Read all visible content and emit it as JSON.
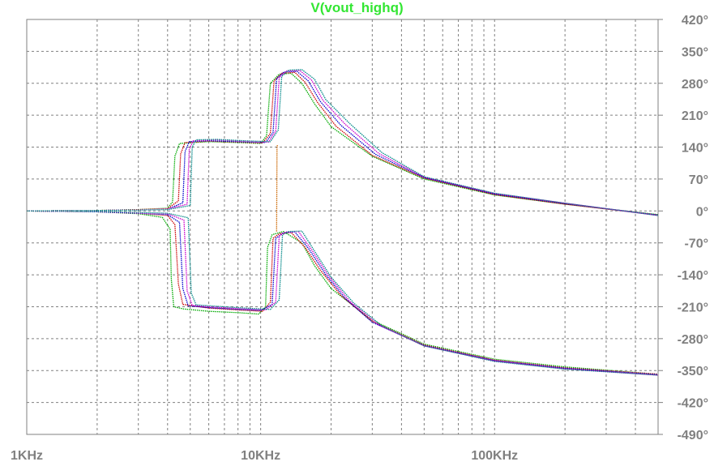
{
  "chart_data": {
    "type": "line",
    "title": "V(vout_highq)",
    "title_color": "#33e633",
    "x_scale": "log",
    "xlim": [
      1000,
      500000
    ],
    "ylim": [
      -490,
      420
    ],
    "x_ticks": [
      {
        "value": 1000,
        "label": "1KHz"
      },
      {
        "value": 10000,
        "label": "10KHz"
      },
      {
        "value": 100000,
        "label": "100KHz"
      }
    ],
    "y_ticks": [
      {
        "value": 420,
        "label": "420°"
      },
      {
        "value": 350,
        "label": "350°"
      },
      {
        "value": 280,
        "label": "280°"
      },
      {
        "value": 210,
        "label": "210°"
      },
      {
        "value": 140,
        "label": "140°"
      },
      {
        "value": 70,
        "label": "70°"
      },
      {
        "value": 0,
        "label": "0°"
      },
      {
        "value": -70,
        "label": "-70°"
      },
      {
        "value": -140,
        "label": "-140°"
      },
      {
        "value": -210,
        "label": "-210°"
      },
      {
        "value": -280,
        "label": "-280°"
      },
      {
        "value": -350,
        "label": "-350°"
      },
      {
        "value": -420,
        "label": "-420°"
      },
      {
        "value": -490,
        "label": "-490°"
      }
    ],
    "grid": true,
    "series": [
      {
        "color": "#00aa00",
        "points": [
          [
            1000,
            0
          ],
          [
            2000,
            -2
          ],
          [
            3000,
            -6
          ],
          [
            3800,
            -14
          ],
          [
            4100,
            -40
          ],
          [
            4150,
            -150
          ],
          [
            4250,
            -210
          ],
          [
            4700,
            -215
          ],
          [
            6000,
            -220
          ],
          [
            8000,
            -223
          ],
          [
            9800,
            -226
          ],
          [
            10500,
            -210
          ],
          [
            10700,
            -80
          ],
          [
            11200,
            -52
          ],
          [
            12500,
            -45
          ],
          [
            15000,
            -70
          ],
          [
            17000,
            -120
          ],
          [
            20000,
            -170
          ],
          [
            30000,
            -240
          ],
          [
            50000,
            -292
          ],
          [
            100000,
            -325
          ],
          [
            200000,
            -342
          ],
          [
            500000,
            -358
          ]
        ]
      },
      {
        "color": "#cc0000",
        "points": [
          [
            1000,
            0
          ],
          [
            2000,
            -2
          ],
          [
            3000,
            -5
          ],
          [
            4000,
            -10
          ],
          [
            4300,
            -30
          ],
          [
            4450,
            -160
          ],
          [
            4650,
            -205
          ],
          [
            6000,
            -213
          ],
          [
            8000,
            -217
          ],
          [
            10200,
            -220
          ],
          [
            11000,
            -200
          ],
          [
            11300,
            -60
          ],
          [
            12000,
            -50
          ],
          [
            13500,
            -47
          ],
          [
            15500,
            -80
          ],
          [
            18000,
            -130
          ],
          [
            22000,
            -185
          ],
          [
            30000,
            -242
          ],
          [
            50000,
            -294
          ],
          [
            100000,
            -327
          ],
          [
            200000,
            -344
          ],
          [
            500000,
            -358
          ]
        ]
      },
      {
        "color": "#0000cc",
        "points": [
          [
            1000,
            0
          ],
          [
            2000,
            -2
          ],
          [
            3000,
            -5
          ],
          [
            4000,
            -8
          ],
          [
            4500,
            -25
          ],
          [
            4650,
            -170
          ],
          [
            4900,
            -208
          ],
          [
            6000,
            -212
          ],
          [
            8000,
            -216
          ],
          [
            10000,
            -218
          ],
          [
            11200,
            -205
          ],
          [
            11600,
            -60
          ],
          [
            12500,
            -48
          ],
          [
            14000,
            -46
          ],
          [
            16000,
            -82
          ],
          [
            19000,
            -140
          ],
          [
            23000,
            -192
          ],
          [
            30000,
            -244
          ],
          [
            50000,
            -295
          ],
          [
            100000,
            -328
          ],
          [
            200000,
            -345
          ],
          [
            500000,
            -359
          ]
        ]
      },
      {
        "color": "#cc00cc",
        "points": [
          [
            1000,
            0
          ],
          [
            2000,
            -1
          ],
          [
            3000,
            -4
          ],
          [
            4000,
            -6
          ],
          [
            4700,
            -20
          ],
          [
            4850,
            -175
          ],
          [
            5100,
            -207
          ],
          [
            6000,
            -210
          ],
          [
            8000,
            -214
          ],
          [
            10500,
            -217
          ],
          [
            11600,
            -200
          ],
          [
            12000,
            -55
          ],
          [
            12800,
            -46
          ],
          [
            14500,
            -45
          ],
          [
            16500,
            -85
          ],
          [
            19500,
            -142
          ],
          [
            24000,
            -198
          ],
          [
            32000,
            -250
          ],
          [
            50000,
            -296
          ],
          [
            100000,
            -329
          ],
          [
            200000,
            -346
          ],
          [
            500000,
            -360
          ]
        ]
      },
      {
        "color": "#008888",
        "points": [
          [
            1000,
            0
          ],
          [
            2000,
            -1
          ],
          [
            3000,
            -3
          ],
          [
            4000,
            -5
          ],
          [
            4900,
            -15
          ],
          [
            5050,
            -180
          ],
          [
            5300,
            -206
          ],
          [
            6500,
            -209
          ],
          [
            8500,
            -213
          ],
          [
            11000,
            -216
          ],
          [
            12000,
            -195
          ],
          [
            12400,
            -52
          ],
          [
            13200,
            -45
          ],
          [
            15000,
            -44
          ],
          [
            17000,
            -88
          ],
          [
            20000,
            -145
          ],
          [
            25000,
            -202
          ],
          [
            33000,
            -252
          ],
          [
            50000,
            -296
          ],
          [
            100000,
            -330
          ],
          [
            200000,
            -347
          ],
          [
            500000,
            -360
          ]
        ]
      },
      {
        "color": "#00aa00",
        "points": [
          [
            1000,
            0
          ],
          [
            2000,
            1
          ],
          [
            3000,
            3
          ],
          [
            4000,
            6
          ],
          [
            4200,
            20
          ],
          [
            4300,
            120
          ],
          [
            4500,
            148
          ],
          [
            6000,
            152
          ],
          [
            8000,
            150
          ],
          [
            10000,
            148
          ],
          [
            10600,
            165
          ],
          [
            11000,
            280
          ],
          [
            12000,
            300
          ],
          [
            13500,
            302
          ],
          [
            15000,
            280
          ],
          [
            17000,
            235
          ],
          [
            20000,
            185
          ],
          [
            30000,
            120
          ],
          [
            50000,
            70
          ],
          [
            100000,
            35
          ],
          [
            200000,
            15
          ],
          [
            500000,
            -8
          ]
        ]
      },
      {
        "color": "#cc0000",
        "points": [
          [
            1000,
            0
          ],
          [
            2000,
            1
          ],
          [
            3000,
            3
          ],
          [
            4000,
            5
          ],
          [
            4450,
            22
          ],
          [
            4550,
            125
          ],
          [
            4750,
            150
          ],
          [
            6000,
            153
          ],
          [
            8000,
            151
          ],
          [
            10200,
            149
          ],
          [
            11000,
            170
          ],
          [
            11400,
            285
          ],
          [
            12300,
            302
          ],
          [
            14000,
            304
          ],
          [
            15500,
            282
          ],
          [
            17500,
            238
          ],
          [
            21000,
            186
          ],
          [
            30000,
            122
          ],
          [
            50000,
            72
          ],
          [
            100000,
            36
          ],
          [
            200000,
            15
          ],
          [
            500000,
            -9
          ]
        ]
      },
      {
        "color": "#0000cc",
        "points": [
          [
            1000,
            0
          ],
          [
            2000,
            1
          ],
          [
            3000,
            2
          ],
          [
            4000,
            4
          ],
          [
            4650,
            18
          ],
          [
            4750,
            130
          ],
          [
            4950,
            152
          ],
          [
            6000,
            154
          ],
          [
            8000,
            152
          ],
          [
            10500,
            150
          ],
          [
            11300,
            172
          ],
          [
            11700,
            290
          ],
          [
            12600,
            305
          ],
          [
            14300,
            306
          ],
          [
            16000,
            285
          ],
          [
            18000,
            240
          ],
          [
            22000,
            188
          ],
          [
            31000,
            124
          ],
          [
            50000,
            73
          ],
          [
            100000,
            37
          ],
          [
            200000,
            16
          ],
          [
            500000,
            -9
          ]
        ]
      },
      {
        "color": "#cc00cc",
        "points": [
          [
            1000,
            0
          ],
          [
            2000,
            1
          ],
          [
            3000,
            2
          ],
          [
            4000,
            4
          ],
          [
            4850,
            15
          ],
          [
            4950,
            135
          ],
          [
            5150,
            154
          ],
          [
            6500,
            156
          ],
          [
            8500,
            153
          ],
          [
            10800,
            151
          ],
          [
            11600,
            175
          ],
          [
            12000,
            292
          ],
          [
            12900,
            307
          ],
          [
            14700,
            308
          ],
          [
            16500,
            287
          ],
          [
            18500,
            242
          ],
          [
            23000,
            190
          ],
          [
            32000,
            126
          ],
          [
            50000,
            74
          ],
          [
            100000,
            38
          ],
          [
            200000,
            17
          ],
          [
            500000,
            -10
          ]
        ]
      },
      {
        "color": "#008888",
        "points": [
          [
            1000,
            0
          ],
          [
            2000,
            1
          ],
          [
            3000,
            2
          ],
          [
            4000,
            3
          ],
          [
            5000,
            12
          ],
          [
            5100,
            140
          ],
          [
            5300,
            156
          ],
          [
            6500,
            157
          ],
          [
            8500,
            154
          ],
          [
            11000,
            152
          ],
          [
            11900,
            178
          ],
          [
            12300,
            295
          ],
          [
            13200,
            309
          ],
          [
            15000,
            310
          ],
          [
            17000,
            289
          ],
          [
            19000,
            244
          ],
          [
            24000,
            192
          ],
          [
            33000,
            128
          ],
          [
            50000,
            75
          ],
          [
            100000,
            39
          ],
          [
            200000,
            17
          ],
          [
            500000,
            -10
          ]
        ]
      },
      {
        "color": "#cc6600",
        "points": [
          [
            11700,
            -45
          ],
          [
            11750,
            140
          ],
          [
            11800,
            145
          ]
        ]
      }
    ]
  }
}
